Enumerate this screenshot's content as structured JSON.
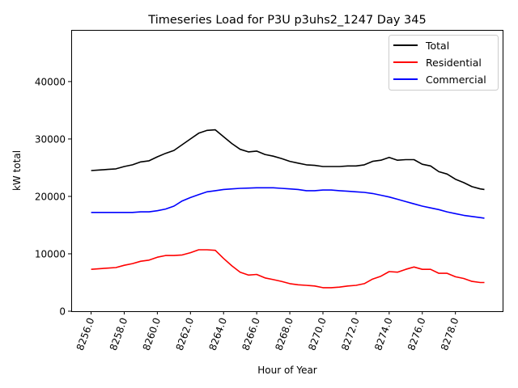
{
  "chart_data": {
    "type": "line",
    "title": "Timeseries Load for P3U p3uhs2_1247  Day 345",
    "xlabel": "Hour of Year",
    "ylabel": "kW total",
    "xlim": [
      8254.8,
      8280.9
    ],
    "ylim": [
      0,
      49000
    ],
    "grid": false,
    "legend_position": "top-right",
    "xticks": [
      8256,
      8258,
      8260,
      8262,
      8264,
      8266,
      8268,
      8270,
      8272,
      8274,
      8276,
      8278
    ],
    "xtick_labels": [
      "8256.0",
      "8258.0",
      "8260.0",
      "8262.0",
      "8264.0",
      "8266.0",
      "8268.0",
      "8270.0",
      "8272.0",
      "8274.0",
      "8276.0",
      "8278.0"
    ],
    "yticks": [
      0,
      10000,
      20000,
      30000,
      40000
    ],
    "ytick_labels": [
      "0",
      "10000",
      "20000",
      "30000",
      "40000"
    ],
    "x": [
      8256,
      8256.5,
      8257,
      8257.5,
      8258,
      8258.5,
      8259,
      8259.5,
      8260,
      8260.5,
      8261,
      8261.5,
      8262,
      8262.5,
      8263,
      8263.5,
      8264,
      8264.5,
      8265,
      8265.5,
      8266,
      8266.5,
      8267,
      8267.5,
      8268,
      8268.5,
      8269,
      8269.5,
      8270,
      8270.5,
      8271,
      8271.5,
      8272,
      8272.5,
      8273,
      8273.5,
      8274,
      8274.5,
      8275,
      8275.5,
      8276,
      8276.5,
      8277,
      8277.5,
      8278,
      8278.5,
      8279,
      8279.5,
      8279.75
    ],
    "series": [
      {
        "name": "Total",
        "color": "#000000",
        "values": [
          24500,
          24600,
          24700,
          24800,
          25200,
          25500,
          26000,
          26200,
          26900,
          27500,
          28000,
          29000,
          30000,
          31000,
          31500,
          31600,
          30400,
          29200,
          28200,
          27750,
          27900,
          27300,
          27000,
          26600,
          26100,
          25800,
          25500,
          25400,
          25200,
          25200,
          25200,
          25300,
          25300,
          25500,
          26100,
          26300,
          26800,
          26300,
          26400,
          26400,
          25600,
          25300,
          24300,
          23900,
          23000,
          22400,
          21700,
          21300,
          21200
        ]
      },
      {
        "name": "Residential",
        "color": "#ff0000",
        "values": [
          7300,
          7400,
          7500,
          7600,
          8000,
          8300,
          8700,
          8900,
          9400,
          9700,
          9700,
          9800,
          10200,
          10700,
          10700,
          10600,
          9200,
          7900,
          6800,
          6300,
          6400,
          5800,
          5500,
          5200,
          4800,
          4600,
          4500,
          4400,
          4100,
          4100,
          4200,
          4400,
          4500,
          4800,
          5600,
          6100,
          6900,
          6800,
          7300,
          7700,
          7300,
          7300,
          6600,
          6600,
          6000,
          5700,
          5200,
          5000,
          5000
        ]
      },
      {
        "name": "Commercial",
        "color": "#0000ff",
        "values": [
          17200,
          17200,
          17200,
          17200,
          17200,
          17200,
          17300,
          17300,
          17500,
          17800,
          18300,
          19200,
          19800,
          20300,
          20800,
          21000,
          21200,
          21300,
          21400,
          21450,
          21500,
          21500,
          21500,
          21400,
          21300,
          21200,
          21000,
          21000,
          21100,
          21100,
          21000,
          20900,
          20800,
          20700,
          20500,
          20200,
          19900,
          19500,
          19100,
          18700,
          18300,
          18000,
          17700,
          17300,
          17000,
          16700,
          16500,
          16300,
          16200
        ]
      }
    ]
  }
}
